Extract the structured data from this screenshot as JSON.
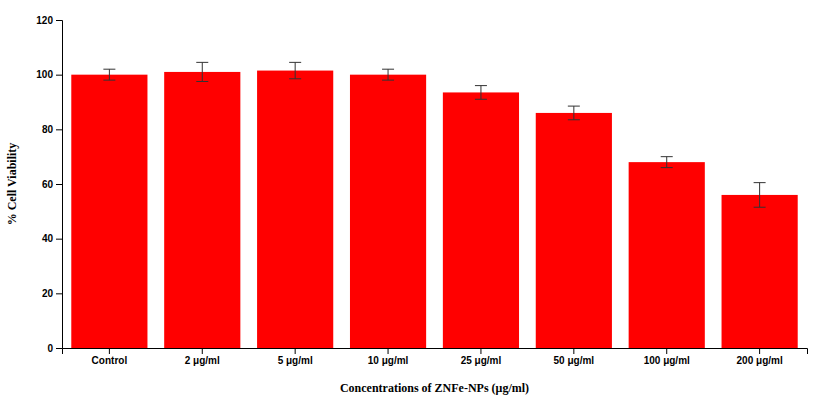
{
  "chart_data": {
    "type": "bar",
    "categories": [
      "Control",
      "2 μg/ml",
      "5 μg/ml",
      "10 μg/ml",
      "25 μg/ml",
      "50 μg/ml",
      "100 μg/ml",
      "200 μg/ml"
    ],
    "values": [
      100.0,
      101.0,
      101.5,
      100.0,
      93.5,
      86.0,
      68.0,
      56.0
    ],
    "errors": [
      2.0,
      3.5,
      3.0,
      2.0,
      2.5,
      2.5,
      2.0,
      4.5
    ],
    "color": "#FF0000",
    "xlabel": "Concentrations  of ZNFe-NPs (μg/ml)",
    "ylabel": "% Cell Viability",
    "ylim": [
      0,
      120
    ],
    "yticks": [
      0,
      20,
      40,
      60,
      80,
      100,
      120
    ],
    "grid": false
  }
}
